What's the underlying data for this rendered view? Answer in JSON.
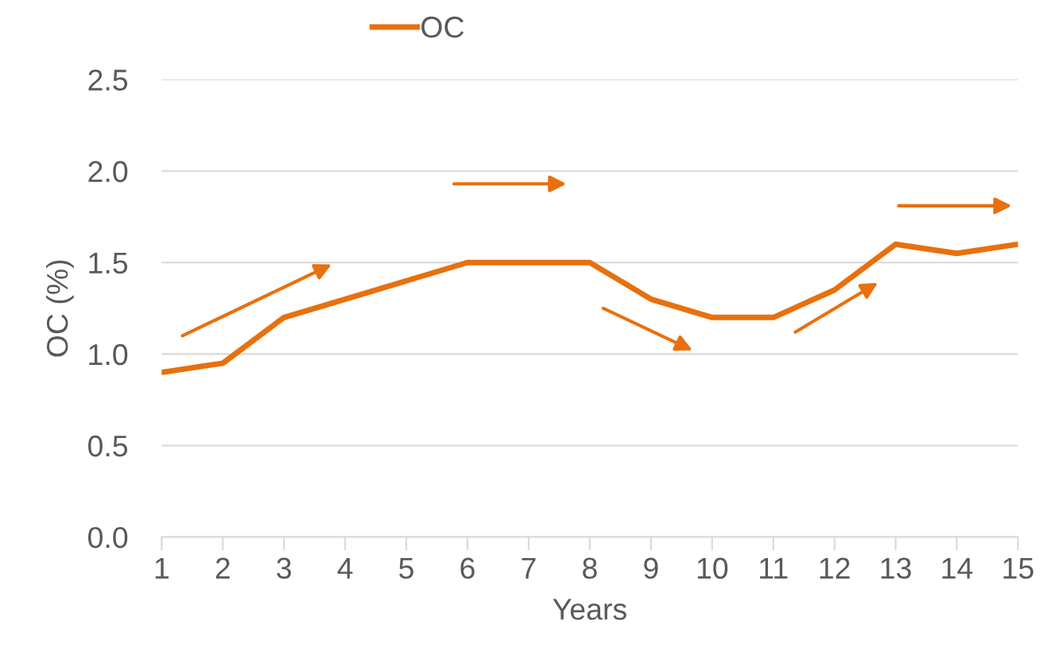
{
  "chart_data": {
    "type": "line",
    "xlabel": "Years",
    "ylabel": "OC (%)",
    "categories": [
      "1",
      "2",
      "3",
      "4",
      "5",
      "6",
      "7",
      "8",
      "9",
      "10",
      "11",
      "12",
      "13",
      "14",
      "15"
    ],
    "series": [
      {
        "name": "OC",
        "color": "#e8700e",
        "values": [
          0.9,
          0.95,
          1.2,
          1.3,
          1.4,
          1.5,
          1.5,
          1.5,
          1.3,
          1.2,
          1.2,
          1.35,
          1.6,
          1.55,
          1.6
        ]
      }
    ],
    "ylim": [
      0,
      2.5
    ],
    "yticks": [
      {
        "value": 0,
        "label": "0.0"
      },
      {
        "value": 0.5,
        "label": "0.5"
      },
      {
        "value": 1,
        "label": "1.0"
      },
      {
        "value": 1.5,
        "label": "1.5"
      },
      {
        "value": 2,
        "label": "2.0"
      },
      {
        "value": 2.5,
        "label": "2.5"
      }
    ],
    "grid": "y",
    "legend": "top",
    "marker": "none",
    "line_style": "solid"
  }
}
